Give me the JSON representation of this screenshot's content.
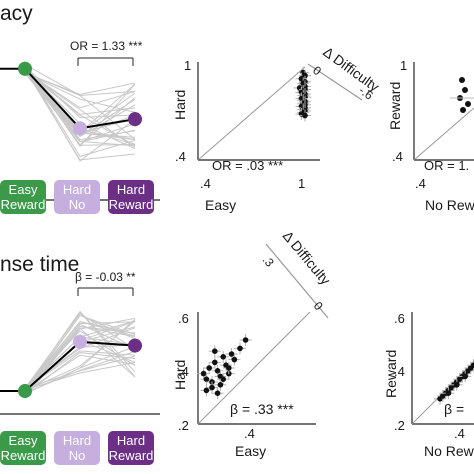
{
  "colors": {
    "easy_reward": "#3a9a4a",
    "hard_no": "#c6aede",
    "hard_reward": "#6b2f86",
    "individual": "#c8c8c8",
    "mean": "#000000",
    "axis": "#222222",
    "identity": "#9a9a9a"
  },
  "conditions": [
    {
      "line1": "Easy",
      "line2": "Reward"
    },
    {
      "line1": "Hard",
      "line2": "No"
    },
    {
      "line1": "Hard",
      "line2": "Reward"
    },
    {
      "line1": "Easy",
      "line2": "Reward"
    },
    {
      "line1": "Hard",
      "line2": "No"
    },
    {
      "line1": "Hard",
      "line2": "Reward"
    }
  ],
  "panels": {
    "top": {
      "title": "acy",
      "stat": "OR = 1.33 ***",
      "scatter_difficulty": {
        "xlabel": "Easy",
        "ylabel": "Hard",
        "ticks_x": [
          ".4",
          "1"
        ],
        "ticks_y": [
          ".4",
          "1"
        ],
        "stat": "OR = .03 ***",
        "diff_label": "Δ Difficulty",
        "diff_ticks": [
          "0",
          "-.6"
        ]
      },
      "scatter_reward": {
        "xlabel": "No Rew",
        "ylabel": "Reward",
        "ticks_x": [
          ".4"
        ],
        "ticks_y": [
          ".4",
          "1"
        ],
        "stat": "OR = 1."
      }
    },
    "bottom": {
      "title": "nse time",
      "stat": "β = -0.03 **",
      "scatter_difficulty": {
        "xlabel": "Easy",
        "ylabel": "Hard",
        "ticks_x": [
          ".4"
        ],
        "ticks_y": [
          ".6",
          ".4",
          ".2"
        ],
        "stat": "β = .33 ***",
        "diff_label": "Δ Difficulty",
        "diff_ticks": [
          ".3",
          "0"
        ]
      },
      "scatter_reward": {
        "xlabel": "No Rew",
        "ylabel": "Reward",
        "ticks_x": [
          ".4"
        ],
        "ticks_y": [
          ".6",
          ".4",
          ".2"
        ],
        "stat": "β ="
      }
    }
  },
  "chart_data": [
    {
      "type": "line",
      "panel": "accuracy-by-condition",
      "categories": [
        "Easy Reward",
        "Hard No",
        "Hard Reward"
      ],
      "series": [
        {
          "values": [
            0.97,
            0.84,
            0.86
          ]
        }
      ],
      "individual_lines": 30
    },
    {
      "type": "scatter",
      "panel": "accuracy-easy-vs-hard",
      "xlabel": "Easy",
      "ylabel": "Hard",
      "xlim": [
        0.4,
        1.0
      ],
      "ylim": [
        0.4,
        1.0
      ],
      "x": [
        0.99,
        1.0,
        0.98,
        1.0,
        0.99,
        1.0,
        0.97,
        1.0,
        0.99,
        0.98,
        1.0,
        0.99,
        1.0,
        0.98,
        0.99,
        1.0,
        0.99,
        1.0,
        0.98,
        1.0,
        0.99,
        1.0,
        0.99,
        0.98,
        1.0
      ],
      "y": [
        0.97,
        0.95,
        0.93,
        0.91,
        0.9,
        0.88,
        0.87,
        0.86,
        0.85,
        0.84,
        0.83,
        0.82,
        0.81,
        0.8,
        0.79,
        0.78,
        0.77,
        0.76,
        0.75,
        0.74,
        0.73,
        0.72,
        0.71,
        0.7,
        0.69
      ]
    },
    {
      "type": "line",
      "panel": "response-time-by-condition",
      "categories": [
        "Easy Reward",
        "Hard No",
        "Hard Reward"
      ],
      "series": [
        {
          "values": [
            0.27,
            0.4,
            0.39
          ]
        }
      ],
      "individual_lines": 30
    },
    {
      "type": "scatter",
      "panel": "response-time-easy-vs-hard",
      "xlabel": "Easy",
      "ylabel": "Hard",
      "xlim": [
        0.2,
        0.6
      ],
      "ylim": [
        0.2,
        0.6
      ],
      "x": [
        0.22,
        0.23,
        0.24,
        0.25,
        0.26,
        0.27,
        0.28,
        0.29,
        0.3,
        0.31,
        0.32,
        0.33,
        0.35,
        0.37,
        0.25,
        0.27,
        0.29,
        0.23,
        0.31,
        0.26,
        0.28
      ],
      "y": [
        0.38,
        0.36,
        0.4,
        0.35,
        0.42,
        0.39,
        0.37,
        0.44,
        0.41,
        0.38,
        0.45,
        0.43,
        0.47,
        0.5,
        0.33,
        0.31,
        0.36,
        0.32,
        0.4,
        0.46,
        0.34
      ]
    },
    {
      "type": "scatter",
      "panel": "response-time-noreward-vs-reward",
      "xlabel": "No Rew",
      "ylabel": "Reward",
      "xlim": [
        0.2,
        0.6
      ],
      "ylim": [
        0.2,
        0.6
      ],
      "x": [
        0.3,
        0.31,
        0.32,
        0.33,
        0.34,
        0.35,
        0.36,
        0.37,
        0.38,
        0.39,
        0.4,
        0.41,
        0.42,
        0.43,
        0.44,
        0.45,
        0.33,
        0.36,
        0.39
      ],
      "y": [
        0.29,
        0.3,
        0.31,
        0.32,
        0.33,
        0.34,
        0.35,
        0.36,
        0.37,
        0.38,
        0.39,
        0.4,
        0.41,
        0.42,
        0.43,
        0.44,
        0.31,
        0.34,
        0.37
      ]
    }
  ]
}
